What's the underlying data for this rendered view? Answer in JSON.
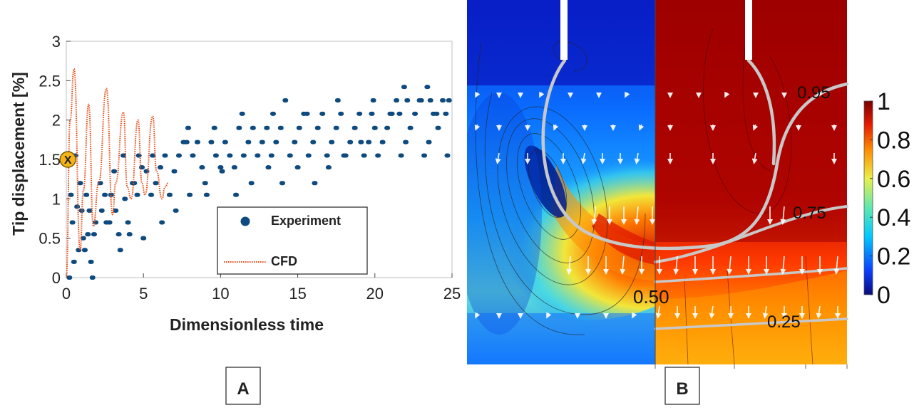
{
  "panel_a": {
    "label": "A",
    "marker_label": "X",
    "legend": {
      "experiment": "Experiment",
      "cfd": "CFD",
      "placement": "lower-right"
    }
  },
  "panel_b": {
    "label": "B",
    "contour_labels": [
      "0.95",
      "0.75",
      "0.50",
      "0.25"
    ],
    "colorbar": {
      "ticks": [
        "1",
        "0.8",
        "0.6",
        "0.4",
        "0.2",
        "0"
      ],
      "min": 0,
      "max": 1
    }
  },
  "colors": {
    "experiment": "#0d4a7f",
    "cfd": "#e8501c",
    "marker_fill": "#f5b318",
    "contour": "#c8c8c8"
  },
  "chart_data": [
    {
      "type": "line",
      "title": "",
      "xlabel": "Dimensionless time",
      "ylabel": "Tip displacement [%]",
      "xlim": [
        0,
        25
      ],
      "ylim": [
        0,
        3
      ],
      "xticks": [
        0,
        5,
        10,
        15,
        20,
        25
      ],
      "yticks": [
        0,
        0.5,
        1,
        1.5,
        2,
        2.5,
        3
      ],
      "ytick_labels": [
        "0",
        "0.5",
        "1",
        "1.5",
        "2",
        "2.5",
        "3"
      ],
      "marker_point": {
        "x": 0.1,
        "y": 1.5
      },
      "series": [
        {
          "name": "CFD",
          "style": "dotted",
          "x": [
            0,
            0.25,
            0.5,
            0.9,
            1.1,
            1.45,
            1.75,
            2.1,
            2.6,
            3.0,
            3.2,
            3.7,
            3.95,
            4.2,
            4.65,
            4.9,
            5.1,
            5.6,
            5.85,
            6.2,
            6.4,
            6.6
          ],
          "y": [
            0,
            2.0,
            2.65,
            0.35,
            1.1,
            2.2,
            0.65,
            1.2,
            2.4,
            0.8,
            1.2,
            2.1,
            1.15,
            1.0,
            2.0,
            1.2,
            1.05,
            2.05,
            1.35,
            1.0,
            1.15,
            1.2
          ]
        },
        {
          "name": "Experiment",
          "style": "scatter",
          "x": [
            0.2,
            0.5,
            0.8,
            1.1,
            1.4,
            1.7,
            0.3,
            0.9,
            1.5,
            0.4,
            0.6,
            1.0,
            1.3,
            1.6,
            1.9,
            0.7,
            1.2,
            1.8,
            2.2,
            2.5,
            2.8,
            3.1,
            3.4,
            3.7,
            4.0,
            4.3,
            4.6,
            4.9,
            2.3,
            2.9,
            3.5,
            4.1,
            4.7,
            5.2,
            5.5,
            5.8,
            6.1,
            6.4,
            2.6,
            3.2,
            3.8,
            4.4,
            5.0,
            5.6,
            6.2,
            6.7,
            7.0,
            7.3,
            7.6,
            7.9,
            8.2,
            8.5,
            8.8,
            9.1,
            9.4,
            9.7,
            10.0,
            10.3,
            10.6,
            10.9,
            11.2,
            11.5,
            11.8,
            12.1,
            12.4,
            12.7,
            13.0,
            13.3,
            13.6,
            13.9,
            14.2,
            14.5,
            14.8,
            15.1,
            15.4,
            15.7,
            16.0,
            16.3,
            16.6,
            16.9,
            17.2,
            17.5,
            17.8,
            18.1,
            18.4,
            18.7,
            19.0,
            19.3,
            19.6,
            19.9,
            20.2,
            20.5,
            20.8,
            21.1,
            21.4,
            21.7,
            22.0,
            22.3,
            22.6,
            22.9,
            23.2,
            23.5,
            23.8,
            24.1,
            24.4,
            24.7,
            7.1,
            8.0,
            9.0,
            10.1,
            11.0,
            12.0,
            13.1,
            14.0,
            15.0,
            16.1,
            17.0,
            18.0,
            19.1,
            20.0,
            21.0,
            22.1,
            23.0,
            24.0,
            24.8,
            21.9,
            23.4,
            7.8,
            9.6,
            11.4,
            13.4,
            15.6,
            17.6,
            19.8,
            21.6,
            23.6,
            24.6
          ],
          "y": [
            0.0,
            0.2,
            0.35,
            0.5,
            0.55,
            0.0,
            1.05,
            1.2,
            0.85,
            0.7,
            1.55,
            0.85,
            1.05,
            0.2,
            0.7,
            0.9,
            0.35,
            0.55,
            1.2,
            1.05,
            0.7,
            1.35,
            0.55,
            1.55,
            0.7,
            1.2,
            1.05,
            1.4,
            0.85,
            1.05,
            0.35,
            0.55,
            1.55,
            1.35,
            1.05,
            1.2,
            1.4,
            1.55,
            0.7,
            0.85,
            1.0,
            1.2,
            0.5,
            1.55,
            0.7,
            1.05,
            1.35,
            1.55,
            1.72,
            1.9,
            1.55,
            1.72,
            1.4,
            1.05,
            1.72,
            1.55,
            1.4,
            1.72,
            1.55,
            1.4,
            1.9,
            1.55,
            1.72,
            1.9,
            1.55,
            1.72,
            1.9,
            1.55,
            1.72,
            1.9,
            2.25,
            1.55,
            1.72,
            1.9,
            2.08,
            1.55,
            1.72,
            1.9,
            2.08,
            1.55,
            1.72,
            1.9,
            2.08,
            1.55,
            1.72,
            1.9,
            2.08,
            1.55,
            1.72,
            2.25,
            1.55,
            1.72,
            1.9,
            2.08,
            2.25,
            1.55,
            1.72,
            1.9,
            2.08,
            2.25,
            1.55,
            1.72,
            2.08,
            1.9,
            2.25,
            1.55,
            0.85,
            1.05,
            1.2,
            1.35,
            1.05,
            1.2,
            1.4,
            1.2,
            1.4,
            1.2,
            1.4,
            1.55,
            1.72,
            1.9,
            2.08,
            2.25,
            2.25,
            2.08,
            2.25,
            2.42,
            2.42,
            1.72,
            1.9,
            2.08,
            2.08,
            2.08,
            2.25,
            2.08,
            2.08,
            2.25,
            2.08
          ]
        }
      ]
    }
  ]
}
